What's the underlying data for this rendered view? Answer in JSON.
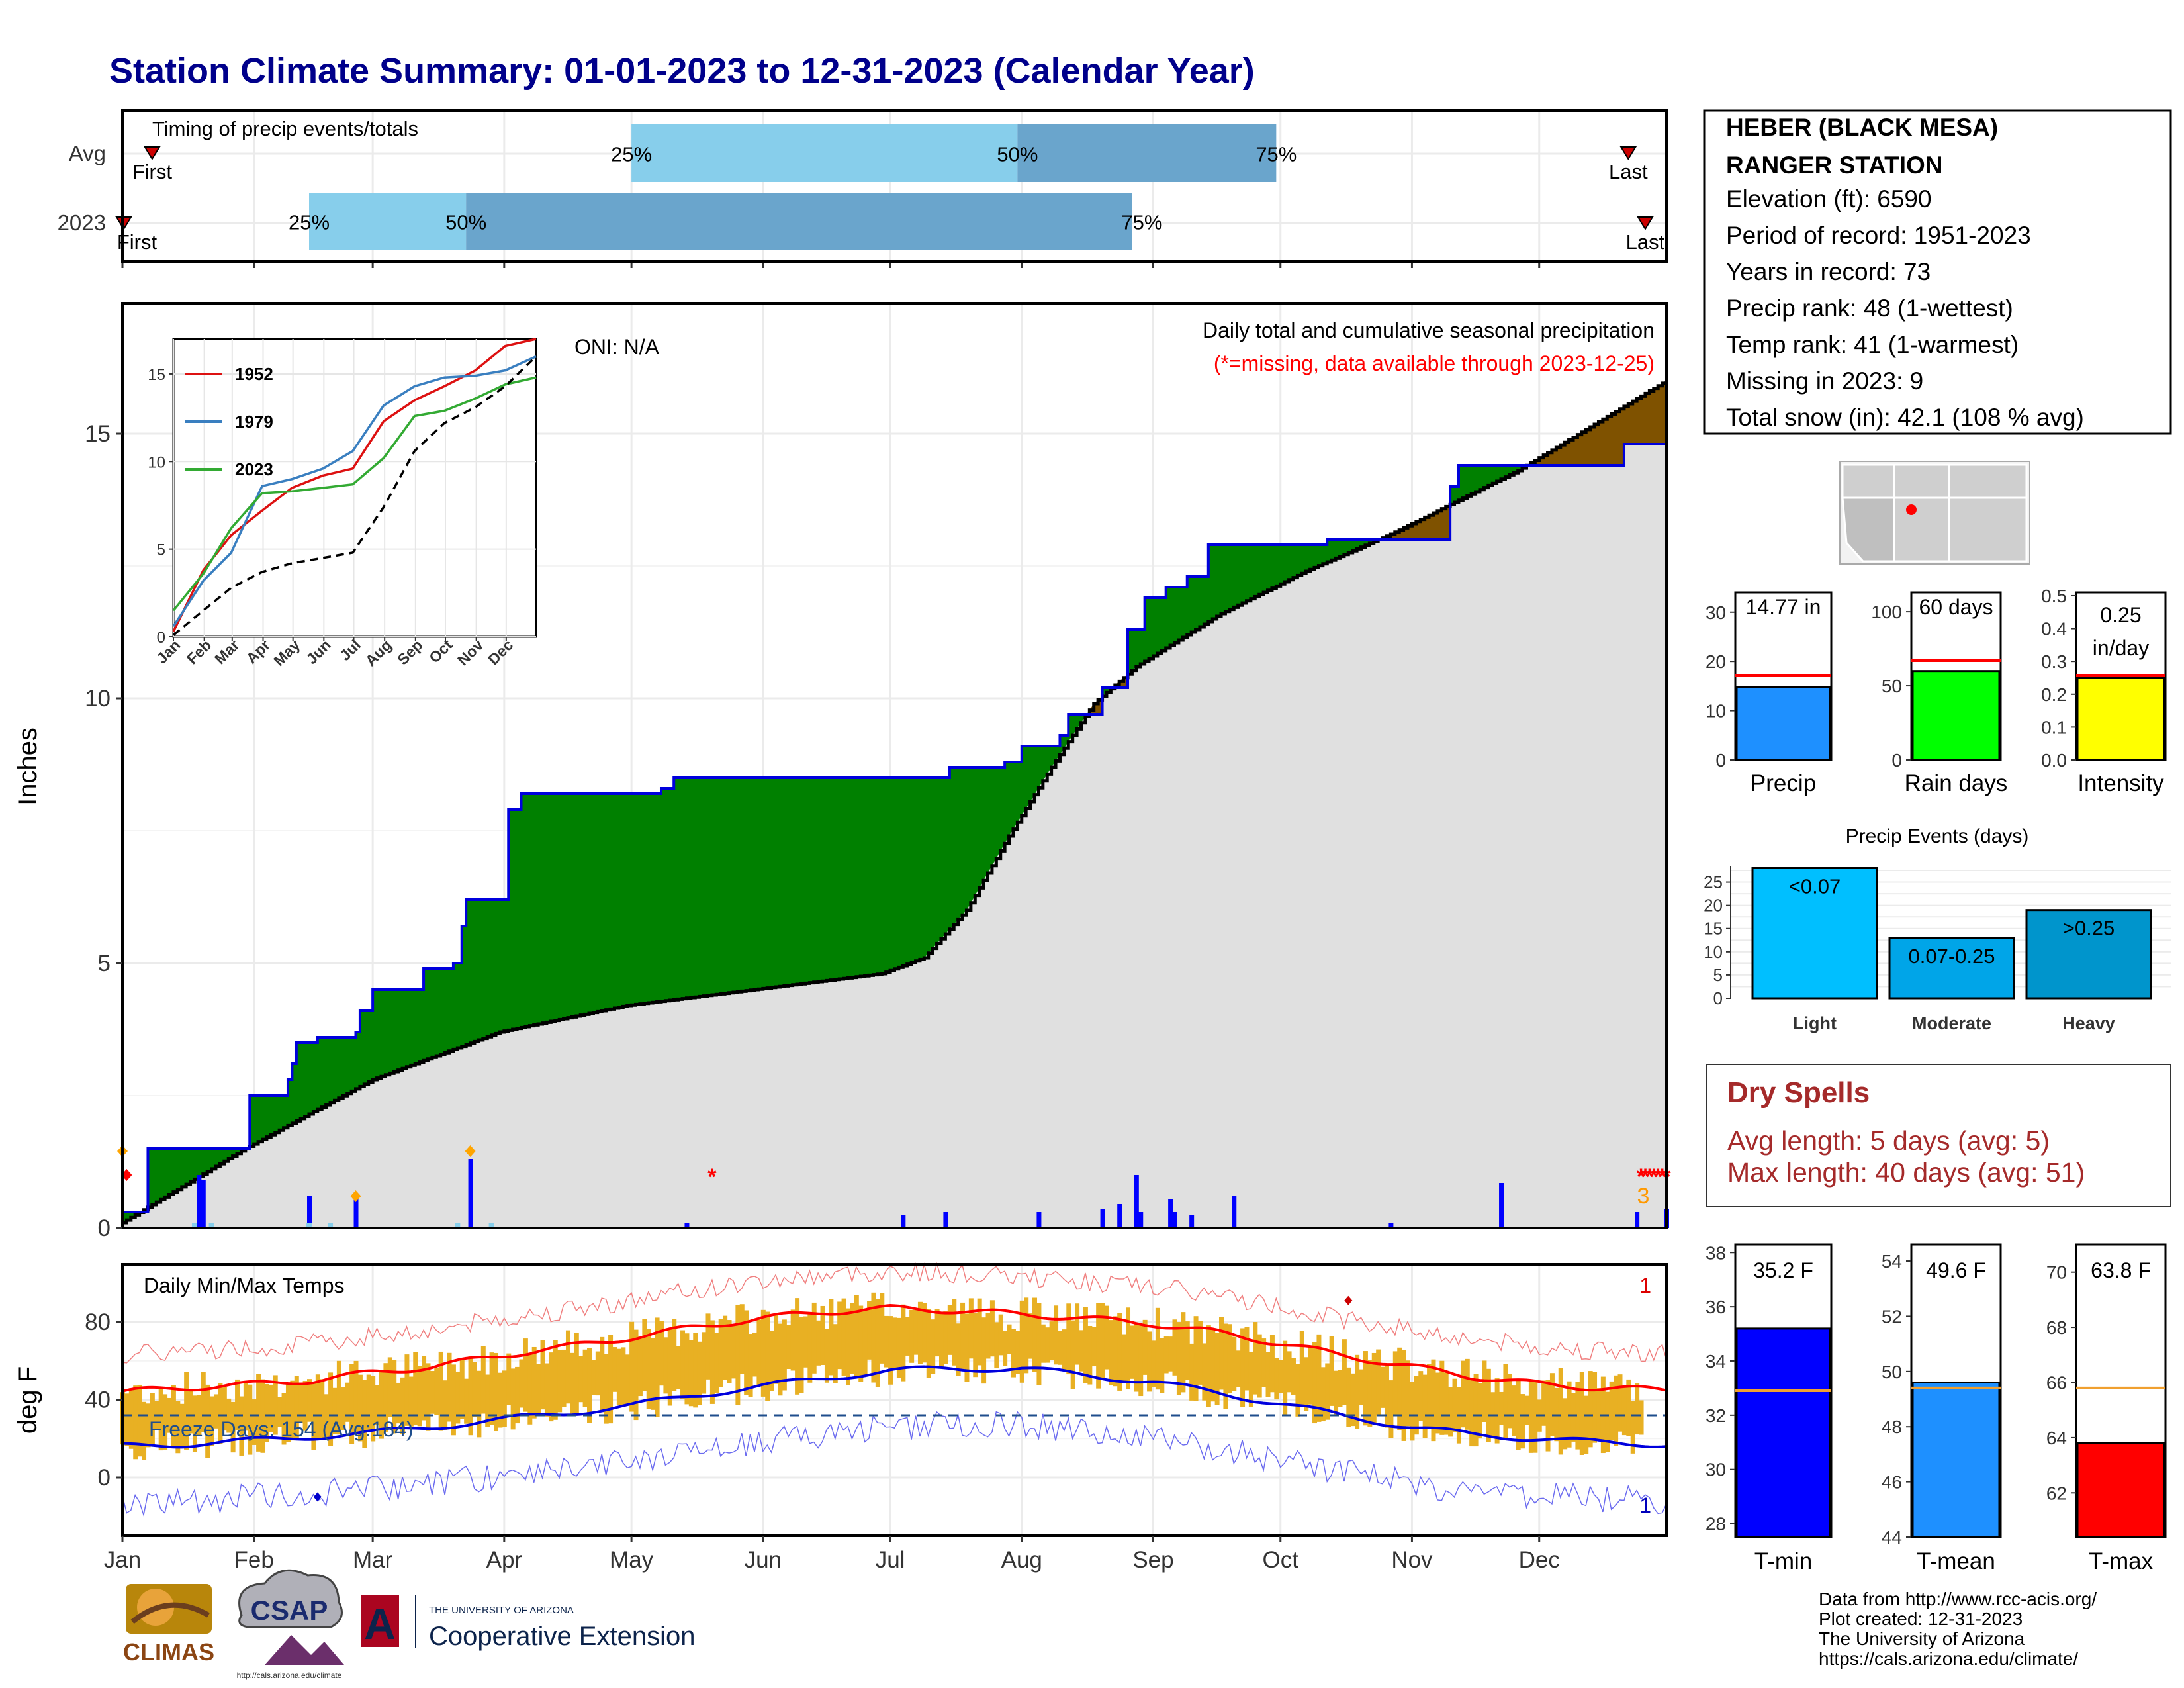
{
  "title": "Station Climate Summary: 01-01-2023 to 12-31-2023 (Calendar Year)",
  "months": [
    "Jan",
    "Feb",
    "Mar",
    "Apr",
    "May",
    "Jun",
    "Jul",
    "Aug",
    "Sep",
    "Oct",
    "Nov",
    "Dec"
  ],
  "timing": {
    "heading": "Timing of precip events/totals",
    "rows": [
      {
        "label": "Avg",
        "first_label": "First",
        "last_label": "Last",
        "first_doy": 8,
        "last_doy": 356,
        "p25_doy": 121,
        "p50_doy": 212,
        "p75_doy": 273,
        "pct_labels": [
          "25%",
          "50%",
          "75%"
        ]
      },
      {
        "label": "2023",
        "first_label": "First",
        "last_label": "Last",
        "first_doy": 1,
        "last_doy": 360,
        "p25_doy": 45,
        "p50_doy": 82,
        "p75_doy": 239,
        "pct_labels": [
          "25%",
          "50%",
          "75%"
        ]
      }
    ],
    "colors": {
      "light": "#87ceeb",
      "dark": "#6aa5cc"
    }
  },
  "precip_panel": {
    "y_axis_label": "Inches",
    "y_ticks": [
      0,
      5,
      10,
      15
    ],
    "header": "Daily total and cumulative seasonal precipitation",
    "missing_note": "(*=missing, data available through 2023-12-25)",
    "oni_label": "ONI: N/A",
    "missing_count_label": "3",
    "colors": {
      "above_avg": "#008000",
      "below_avg": "#7f5200",
      "avg_fill": "#e0e0e0",
      "daily": "#0000ff",
      "missing": "#ff0000"
    }
  },
  "temp_panel": {
    "y_axis_label": "deg F",
    "y_ticks": [
      0,
      40,
      80
    ],
    "heading": "Daily Min/Max Temps",
    "freeze_label": "Freeze Days: 154 (Avg:184)",
    "record_high_count": "1",
    "record_low_count": "1"
  },
  "station": {
    "name_line1": "HEBER (BLACK MESA)",
    "name_line2": "RANGER STATION",
    "lines": [
      "Elevation (ft): 6590",
      "Period of record: 1951-2023",
      "Years in record: 73",
      "Precip rank: 48 (1-wettest)",
      "Temp rank: 41 (1-warmest)",
      "Missing in 2023: 9",
      "Total snow (in): 42.1 (108 % avg)"
    ]
  },
  "summary_bars": [
    {
      "label": "Precip",
      "value_text": "14.77 in",
      "value": 14.77,
      "avg": 17.2,
      "ymax": 34,
      "ticks": [
        0,
        10,
        20,
        30
      ],
      "color": "#1e90ff"
    },
    {
      "label": "Rain days",
      "value_text": "60 days",
      "value": 60,
      "avg": 67,
      "ymax": 113,
      "ticks": [
        0,
        50,
        100
      ],
      "color": "#00ff00"
    },
    {
      "label": "Intensity",
      "value_text": "0.25 in/day",
      "value_line1": "0.25",
      "value_line2": "in/day",
      "value": 0.25,
      "avg": 0.258,
      "ymax": 0.51,
      "ticks": [
        "0.0",
        "0.1",
        "0.2",
        "0.3",
        "0.4",
        "0.5"
      ],
      "color": "#ffff00"
    }
  ],
  "precip_events": {
    "title": "Precip Events (days)",
    "ticks": [
      0,
      5,
      10,
      15,
      20,
      25
    ],
    "bars": [
      {
        "label": "Light",
        "bar_label": "<0.07",
        "value": 28,
        "color": "#00bfff"
      },
      {
        "label": "Moderate",
        "bar_label": "0.07-0.25",
        "value": 13,
        "color": "#00a5e8"
      },
      {
        "label": "Heavy",
        "bar_label": ">0.25",
        "value": 19,
        "color": "#0095cc"
      }
    ]
  },
  "dry_spells": {
    "title": "Dry Spells",
    "avg_line": "Avg length: 5 days (avg: 5)",
    "max_line": "Max length: 40 days (avg: 51)"
  },
  "temp_bars": [
    {
      "label": "T-min",
      "value_text": "35.2 F",
      "value": 35.2,
      "avg": 32.9,
      "ymin": 27.5,
      "ymax": 38.3,
      "ticks": [
        28,
        30,
        32,
        34,
        36,
        38
      ],
      "color": "#0000ff"
    },
    {
      "label": "T-mean",
      "value_text": "49.6 F",
      "value": 49.6,
      "avg": 49.4,
      "ymin": 44,
      "ymax": 54.6,
      "ticks": [
        44,
        46,
        48,
        50,
        52,
        54
      ],
      "color": "#1e90ff"
    },
    {
      "label": "T-max",
      "value_text": "63.8 F",
      "value": 63.8,
      "avg": 65.8,
      "ymin": 60.4,
      "ymax": 71,
      "ticks": [
        62,
        64,
        66,
        68,
        70
      ],
      "color": "#ff0000"
    }
  ],
  "inset": {
    "legend": [
      {
        "name": "1952",
        "color": "#dd1111"
      },
      {
        "name": "1979",
        "color": "#3a7fc0"
      },
      {
        "name": "2023",
        "color": "#33aa33"
      }
    ],
    "y_ticks": [
      0,
      5,
      10,
      15
    ],
    "x_labels": [
      "Jan",
      "Feb",
      "Mar",
      "Apr",
      "May",
      "Jun",
      "Jul",
      "Aug",
      "Sep",
      "Oct",
      "Nov",
      "Dec"
    ]
  },
  "footer": {
    "lines": [
      "Data from http://www.rcc-acis.org/",
      "Plot created: 12-31-2023",
      "The University of Arizona",
      "https://cals.arizona.edu/climate/"
    ],
    "logo_climas": "CLIMAS",
    "logo_csap": "CSAP",
    "logo_csap_url": "http://cals.arizona.edu/climate",
    "logo_ua_small": "THE UNIVERSITY OF ARIZONA",
    "logo_ua_big": "Cooperative Extension",
    "logo_ua_letter": "A"
  },
  "chart_data": [
    {
      "type": "area",
      "title": "Daily total and cumulative seasonal precipitation",
      "ylabel": "Inches",
      "ylim": [
        0,
        17.5
      ],
      "x_unit": "day of year 2023",
      "xlim": [
        1,
        365
      ],
      "series": [
        {
          "name": "2023",
          "x": [
            1,
            7,
            16,
            25,
            30,
            31,
            40,
            41,
            42,
            47,
            48,
            56,
            57,
            59,
            60,
            71,
            72,
            79,
            81,
            82,
            92,
            95,
            120,
            128,
            131,
            142,
            196,
            209,
            212,
            213,
            218,
            222,
            224,
            232,
            238,
            242,
            247,
            249,
            252,
            257,
            268,
            285,
            297,
            314,
            316,
            346,
            355,
            365
          ],
          "values": [
            0.3,
            1.5,
            1.5,
            1.5,
            1.5,
            2.5,
            2.8,
            3.1,
            3.5,
            3.6,
            3.6,
            3.7,
            4.1,
            4.1,
            4.5,
            4.5,
            4.9,
            5.0,
            5.7,
            6.2,
            7.9,
            8.2,
            8.2,
            8.3,
            8.5,
            8.5,
            8.7,
            8.8,
            8.8,
            9.1,
            9.1,
            9.3,
            9.7,
            10.2,
            11.3,
            11.9,
            12.1,
            12.1,
            12.3,
            12.9,
            12.9,
            13.0,
            13.0,
            14.0,
            14.4,
            14.4,
            14.8,
            14.8
          ]
        },
        {
          "name": "Average",
          "x": [
            1,
            30,
            60,
            90,
            120,
            150,
            180,
            190,
            200,
            210,
            220,
            230,
            240,
            250,
            260,
            280,
            300,
            330,
            365
          ],
          "values": [
            0.1,
            1.5,
            2.8,
            3.7,
            4.2,
            4.5,
            4.8,
            5.1,
            6.0,
            7.4,
            8.7,
            9.9,
            10.6,
            11.1,
            11.6,
            12.4,
            13.1,
            14.3,
            16.0
          ]
        }
      ]
    },
    {
      "type": "bar",
      "title": "Daily precipitation",
      "x": [
        19,
        20,
        45,
        56,
        83,
        134,
        185,
        195,
        217,
        232,
        236,
        240,
        241,
        248,
        249,
        253,
        263,
        300,
        326,
        358,
        365
      ],
      "values": [
        1.0,
        0.9,
        0.6,
        0.55,
        1.3,
        0.1,
        0.25,
        0.3,
        0.3,
        0.35,
        0.45,
        1.0,
        0.3,
        0.55,
        0.3,
        0.25,
        0.6,
        0.1,
        0.85,
        0.3,
        0.35
      ]
    },
    {
      "type": "line",
      "title": "Daily Min/Max Temps",
      "ylabel": "deg F",
      "ylim": [
        -30,
        100
      ],
      "x": [
        1,
        15,
        32,
        46,
        60,
        74,
        91,
        105,
        121,
        135,
        152,
        166,
        182,
        196,
        213,
        227,
        244,
        258,
        274,
        288,
        305,
        319,
        335,
        349,
        365
      ],
      "series": [
        {
          "name": "Avg max",
          "values": [
            44,
            46,
            48,
            50,
            54,
            57,
            63,
            67,
            72,
            77,
            82,
            85,
            87,
            86,
            84,
            82,
            79,
            75,
            69,
            63,
            57,
            52,
            48,
            46,
            45
          ]
        },
        {
          "name": "Avg min",
          "values": [
            16,
            17,
            19,
            21,
            23,
            26,
            30,
            33,
            37,
            42,
            47,
            51,
            55,
            56,
            56,
            53,
            49,
            44,
            38,
            32,
            26,
            22,
            20,
            18,
            17
          ]
        }
      ],
      "freeze_line": 32
    },
    {
      "type": "line",
      "title": "Cumulative precipitation (inset)",
      "ylim": [
        0,
        17
      ],
      "x": [
        1,
        31,
        59,
        90,
        120,
        151,
        181,
        212,
        243,
        273,
        304,
        334,
        365
      ],
      "series": [
        {
          "name": "1952",
          "values": [
            0.3,
            3.8,
            5.8,
            7.2,
            8.5,
            9.2,
            9.6,
            12.3,
            13.5,
            14.3,
            15.2,
            16.6,
            17.0
          ]
        },
        {
          "name": "1979",
          "values": [
            0.6,
            3.2,
            4.8,
            8.6,
            9.0,
            9.6,
            10.6,
            13.2,
            14.3,
            14.8,
            14.9,
            15.2,
            16.0
          ]
        },
        {
          "name": "2023",
          "values": [
            1.5,
            3.6,
            6.2,
            8.2,
            8.3,
            8.5,
            8.7,
            10.2,
            12.6,
            12.9,
            13.6,
            14.4,
            14.8
          ]
        },
        {
          "name": "Average",
          "values": [
            0.1,
            1.5,
            2.8,
            3.7,
            4.2,
            4.5,
            4.8,
            7.4,
            10.6,
            12.2,
            13.1,
            14.3,
            16.0
          ]
        }
      ]
    }
  ]
}
